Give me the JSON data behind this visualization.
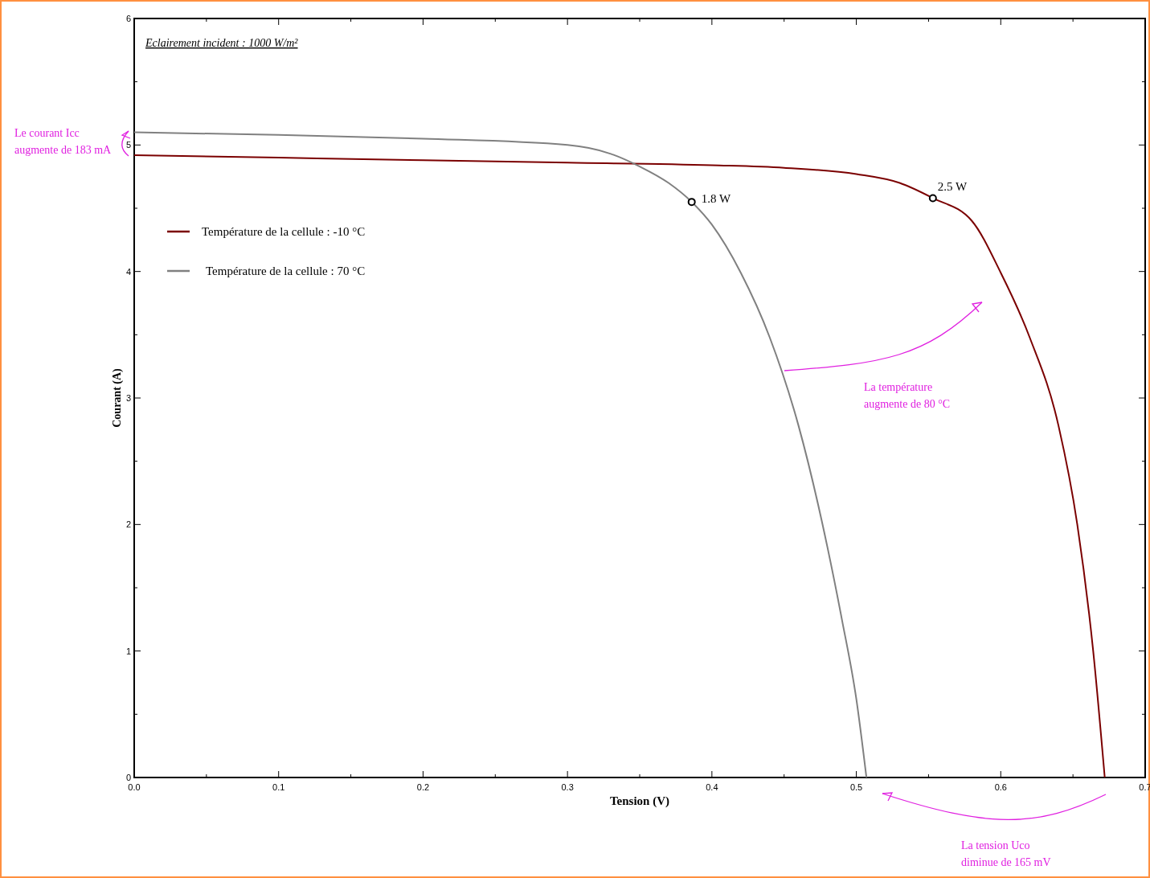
{
  "chart_data": {
    "type": "line",
    "subtitle": "Eclairement incident : 1000 W/m²",
    "xlabel": "Tension (V)",
    "ylabel": "Courant (A)",
    "xlim": [
      0,
      0.7
    ],
    "ylim": [
      0,
      6
    ],
    "xticks": [
      {
        "value": 0,
        "label": "0.0"
      },
      {
        "value": 0.05,
        "label": null
      },
      0.1,
      {
        "value": 0.15,
        "label": null
      },
      0.2,
      {
        "value": 0.25,
        "label": null
      },
      0.3,
      {
        "value": 0.35,
        "label": null
      },
      0.4,
      {
        "value": 0.45,
        "label": null
      },
      0.5,
      {
        "value": 0.55,
        "label": null
      },
      0.6,
      {
        "value": 0.65,
        "label": null
      },
      0.7
    ],
    "yticks": [
      0,
      {
        "value": 0.5,
        "label": null
      },
      1,
      {
        "value": 1.5,
        "label": null
      },
      2,
      {
        "value": 2.5,
        "label": null
      },
      3,
      {
        "value": 3.5,
        "label": null
      },
      4,
      {
        "value": 4.5,
        "label": null
      },
      5,
      {
        "value": 5.5,
        "label": null
      },
      6
    ],
    "grid": false,
    "legend": "left",
    "series": [
      {
        "name": "Température de la cellule : -10 °C",
        "color": "#7b0000",
        "x": [
          0,
          0.1,
          0.2,
          0.3,
          0.4,
          0.45,
          0.5,
          0.53,
          0.553,
          0.58,
          0.6,
          0.62,
          0.64,
          0.653,
          0.664,
          0.672
        ],
        "values": [
          4.92,
          4.9,
          4.88,
          4.86,
          4.84,
          4.82,
          4.77,
          4.7,
          4.58,
          4.4,
          3.99,
          3.48,
          2.78,
          2,
          1,
          0
        ]
      },
      {
        "name": "Température de la cellule : 70 °C",
        "color": "#808080",
        "x": [
          0,
          0.1,
          0.2,
          0.3,
          0.33,
          0.35,
          0.37,
          0.386,
          0.4,
          0.42,
          0.44,
          0.46,
          0.48,
          0.49,
          0.5,
          0.507
        ],
        "values": [
          5.1,
          5.08,
          5.05,
          5,
          4.93,
          4.83,
          4.7,
          4.55,
          4.37,
          3.99,
          3.48,
          2.78,
          1.82,
          1.25,
          0.62,
          0
        ]
      },
      {
        "type": "scatter",
        "marker": "circle",
        "color": "#000000",
        "x": [
          0.386
        ],
        "values": [
          4.55
        ]
      },
      {
        "type": "scatter",
        "marker": "circle",
        "color": "#000000",
        "x": [
          0.553
        ],
        "values": [
          4.58
        ]
      }
    ],
    "annotations": [
      "Le courant Icc\naugmente de 183 mA",
      "La température\naugmente de 80 °C",
      "La tension Uco\ndiminue de 165 mV",
      {
        "text": "1.8 W",
        "x": 0.386,
        "y": 4.55
      },
      {
        "text": "2.5 W",
        "x": 0.553,
        "y": 4.58
      }
    ]
  }
}
